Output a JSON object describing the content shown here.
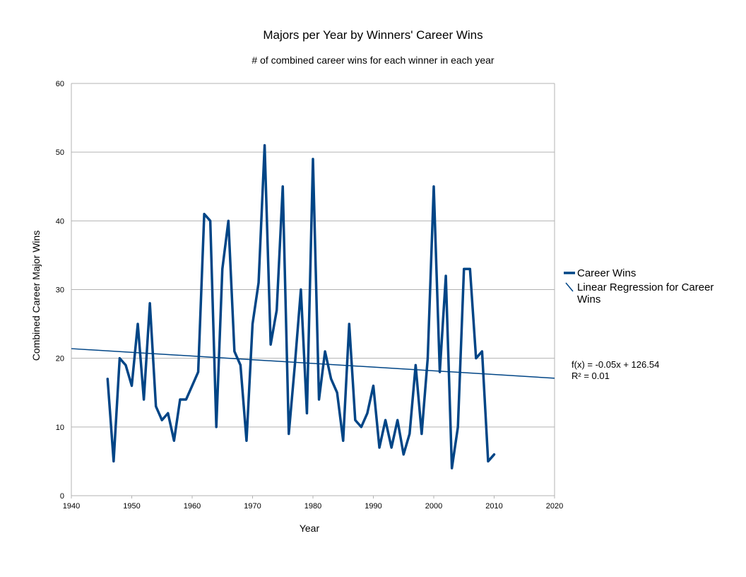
{
  "chart_data": {
    "type": "line",
    "title": "Majors per Year by Winners' Career Wins",
    "subtitle": "# of combined career wins for each winner in each year",
    "xlabel": "Year",
    "ylabel": "Combined Career Major Wins",
    "xlim": [
      1940,
      2020
    ],
    "ylim": [
      0,
      60
    ],
    "xticks": [
      1940,
      1950,
      1960,
      1970,
      1980,
      1990,
      2000,
      2010,
      2020
    ],
    "yticks": [
      0,
      10,
      20,
      30,
      40,
      50,
      60
    ],
    "grid": "horizontal",
    "legend": "right",
    "colors": {
      "series": "#004586",
      "grid": "#b3b3b3",
      "axis": "#b3b3b3"
    },
    "series": [
      {
        "name": "Career Wins",
        "x": [
          1946,
          1947,
          1948,
          1949,
          1950,
          1951,
          1952,
          1953,
          1954,
          1955,
          1956,
          1957,
          1958,
          1959,
          1960,
          1961,
          1962,
          1963,
          1964,
          1965,
          1966,
          1967,
          1968,
          1969,
          1970,
          1971,
          1972,
          1973,
          1974,
          1975,
          1976,
          1977,
          1978,
          1979,
          1980,
          1981,
          1982,
          1983,
          1984,
          1985,
          1986,
          1987,
          1988,
          1989,
          1990,
          1991,
          1992,
          1993,
          1994,
          1995,
          1996,
          1997,
          1998,
          1999,
          2000,
          2001,
          2002,
          2003,
          2004,
          2005,
          2006,
          2007,
          2008,
          2009,
          2010
        ],
        "values": [
          17,
          5,
          20,
          19,
          16,
          25,
          14,
          28,
          13,
          11,
          12,
          8,
          14,
          14,
          16,
          18,
          41,
          40,
          10,
          33,
          40,
          21,
          19,
          8,
          25,
          31,
          51,
          22,
          27,
          45,
          9,
          19,
          30,
          12,
          49,
          14,
          21,
          17,
          15,
          8,
          25,
          11,
          10,
          12,
          16,
          7,
          11,
          7,
          11,
          6,
          9,
          19,
          9,
          20,
          45,
          18,
          32,
          4,
          10,
          33,
          33,
          20,
          21,
          5,
          6
        ]
      }
    ],
    "regression": {
      "name": "Linear Regression for Career Wins",
      "slope": -0.05,
      "intercept": 126.54,
      "line_start": [
        1940,
        21.4
      ],
      "line_end": [
        2020,
        17.1
      ],
      "equation": "f(x) = -0.05x + 126.54",
      "r2": "R² = 0.01"
    }
  }
}
